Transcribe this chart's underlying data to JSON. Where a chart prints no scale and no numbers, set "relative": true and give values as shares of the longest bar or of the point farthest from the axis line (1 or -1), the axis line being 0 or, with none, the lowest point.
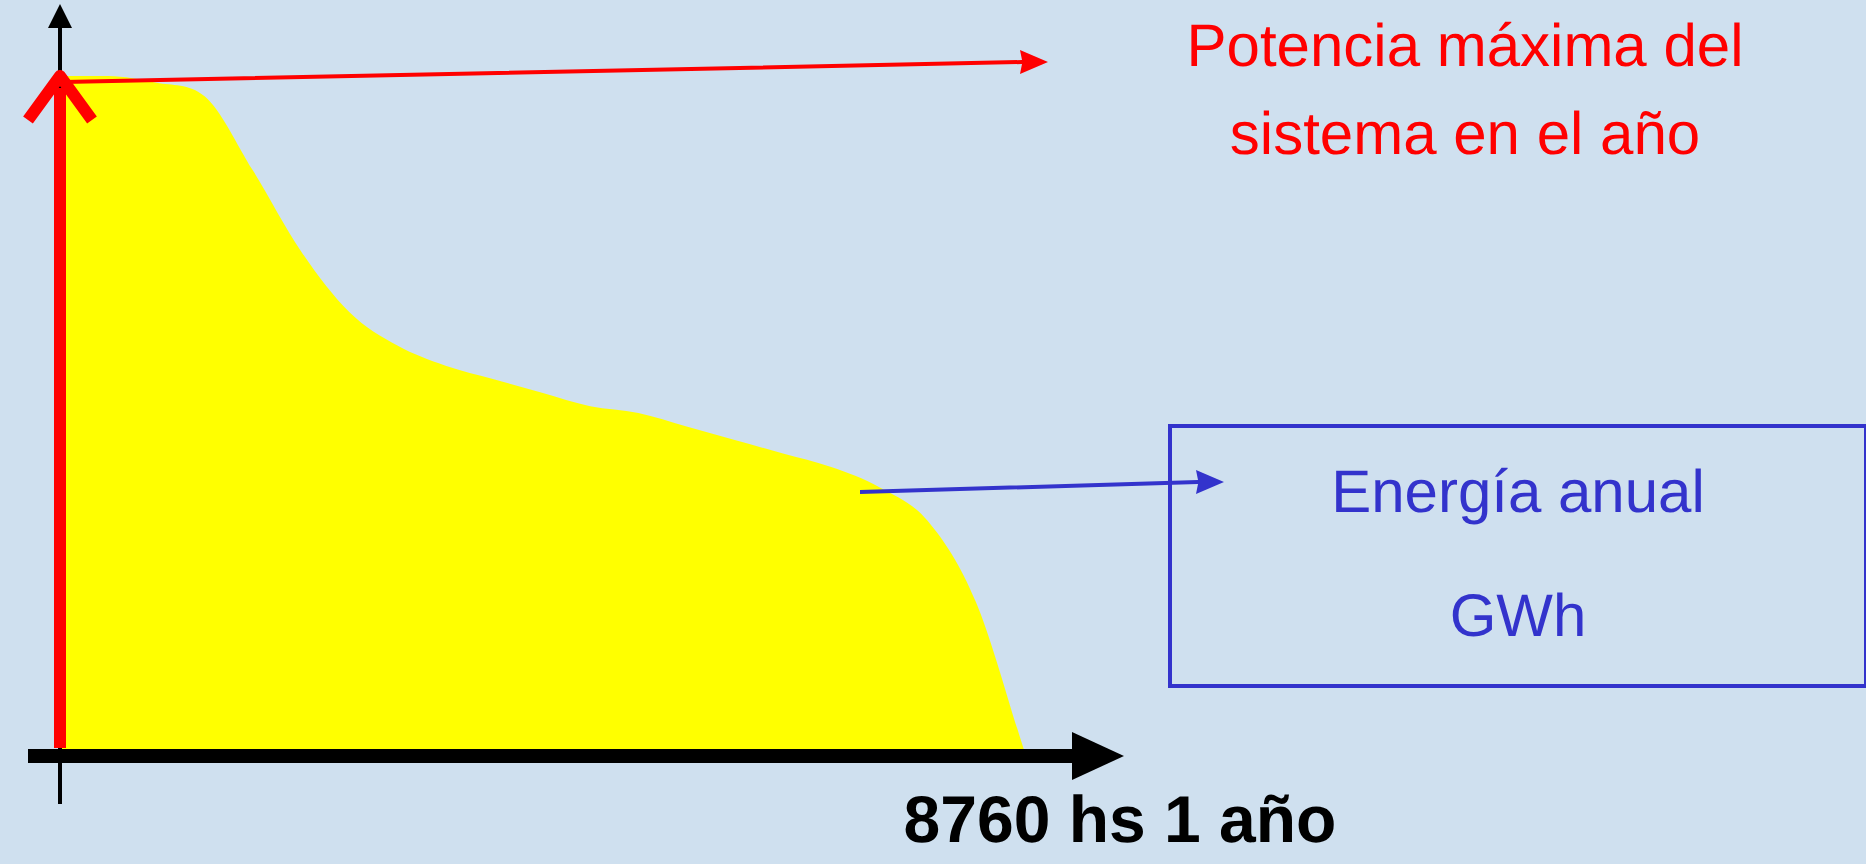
{
  "chart_data": {
    "type": "area",
    "relative": true,
    "xlabel": "8760 hs 1 año",
    "annotations": [
      "Potencia máxima del sistema en el año",
      "Energía anual GWh"
    ],
    "categories": [
      null,
      null,
      null,
      null,
      null,
      null,
      null,
      null,
      null,
      null,
      null,
      null,
      null,
      null,
      null,
      null,
      null,
      null,
      null,
      null,
      null
    ],
    "color": "#ffff00",
    "values": [
      1,
      1,
      0.99,
      0.97,
      0.86,
      0.74,
      0.65,
      0.6,
      0.57,
      0.55,
      0.53,
      0.51,
      0.5,
      0.48,
      0.46,
      0.44,
      0.42,
      0.39,
      0.34,
      0.22,
      0
    ]
  }
}
